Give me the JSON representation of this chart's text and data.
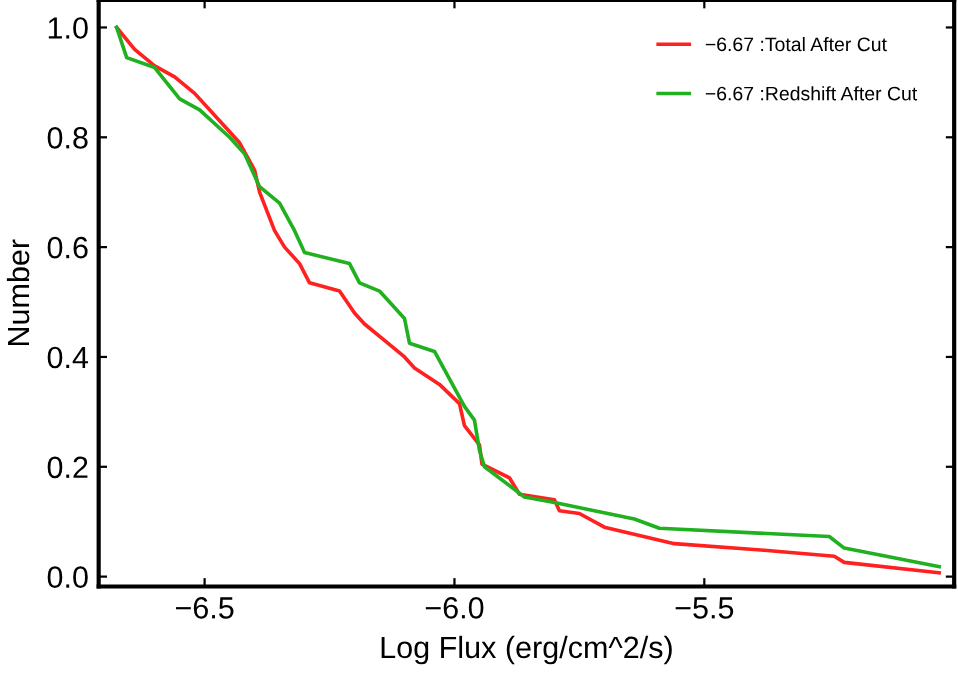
{
  "chart_data": {
    "type": "line",
    "xlabel": "Log Flux (erg/cm^2/s)",
    "ylabel": "Number",
    "xlim": [
      -6.712,
      -5.0
    ],
    "ylim": [
      -0.018,
      1.05
    ],
    "xticks": [
      {
        "value": -6.5,
        "label": "−6.5"
      },
      {
        "value": -6.0,
        "label": "−6.0"
      },
      {
        "value": -5.5,
        "label": "−5.5"
      }
    ],
    "yticks": [
      {
        "value": 0.0,
        "label": "0.0"
      },
      {
        "value": 0.2,
        "label": "0.2"
      },
      {
        "value": 0.4,
        "label": "0.4"
      },
      {
        "value": 0.6,
        "label": "0.6"
      },
      {
        "value": 0.8,
        "label": "0.8"
      },
      {
        "value": 1.0,
        "label": "1.0"
      }
    ],
    "grid": false,
    "legend": "top right",
    "marker": "none",
    "line_style": "solid",
    "series": [
      {
        "name": "−6.67 :Total After Cut",
        "color": "#ff2020",
        "x": [
          -6.676,
          -6.64,
          -6.6,
          -6.56,
          -6.52,
          -6.47,
          -6.43,
          -6.4,
          -6.39,
          -6.36,
          -6.34,
          -6.31,
          -6.29,
          -6.23,
          -6.2,
          -6.18,
          -6.14,
          -6.1,
          -6.08,
          -6.03,
          -5.99,
          -5.98,
          -5.95,
          -5.945,
          -5.89,
          -5.87,
          -5.8,
          -5.79,
          -5.75,
          -5.7,
          -5.56,
          -5.38,
          -5.24,
          -5.22,
          -5.03
        ],
        "values": [
          1.0,
          0.96,
          0.93,
          0.91,
          0.88,
          0.83,
          0.79,
          0.74,
          0.7,
          0.63,
          0.6,
          0.57,
          0.535,
          0.52,
          0.48,
          0.46,
          0.43,
          0.4,
          0.38,
          0.35,
          0.315,
          0.275,
          0.24,
          0.205,
          0.18,
          0.15,
          0.14,
          0.12,
          0.115,
          0.09,
          0.06,
          0.048,
          0.037,
          0.026,
          0.007
        ]
      },
      {
        "name": "−6.67 :Redshift After Cut",
        "color": "#20b020",
        "x": [
          -6.676,
          -6.656,
          -6.6,
          -6.55,
          -6.51,
          -6.45,
          -6.42,
          -6.39,
          -6.35,
          -6.32,
          -6.3,
          -6.21,
          -6.19,
          -6.15,
          -6.1,
          -6.09,
          -6.04,
          -6.01,
          -5.98,
          -5.96,
          -5.95,
          -5.94,
          -5.86,
          -5.8,
          -5.72,
          -5.64,
          -5.59,
          -5.25,
          -5.22,
          -5.03
        ],
        "values": [
          1.0,
          0.945,
          0.927,
          0.87,
          0.85,
          0.8,
          0.77,
          0.71,
          0.68,
          0.63,
          0.59,
          0.57,
          0.535,
          0.52,
          0.47,
          0.425,
          0.41,
          0.36,
          0.31,
          0.285,
          0.23,
          0.2,
          0.145,
          0.135,
          0.12,
          0.105,
          0.088,
          0.073,
          0.052,
          0.018
        ]
      }
    ]
  }
}
